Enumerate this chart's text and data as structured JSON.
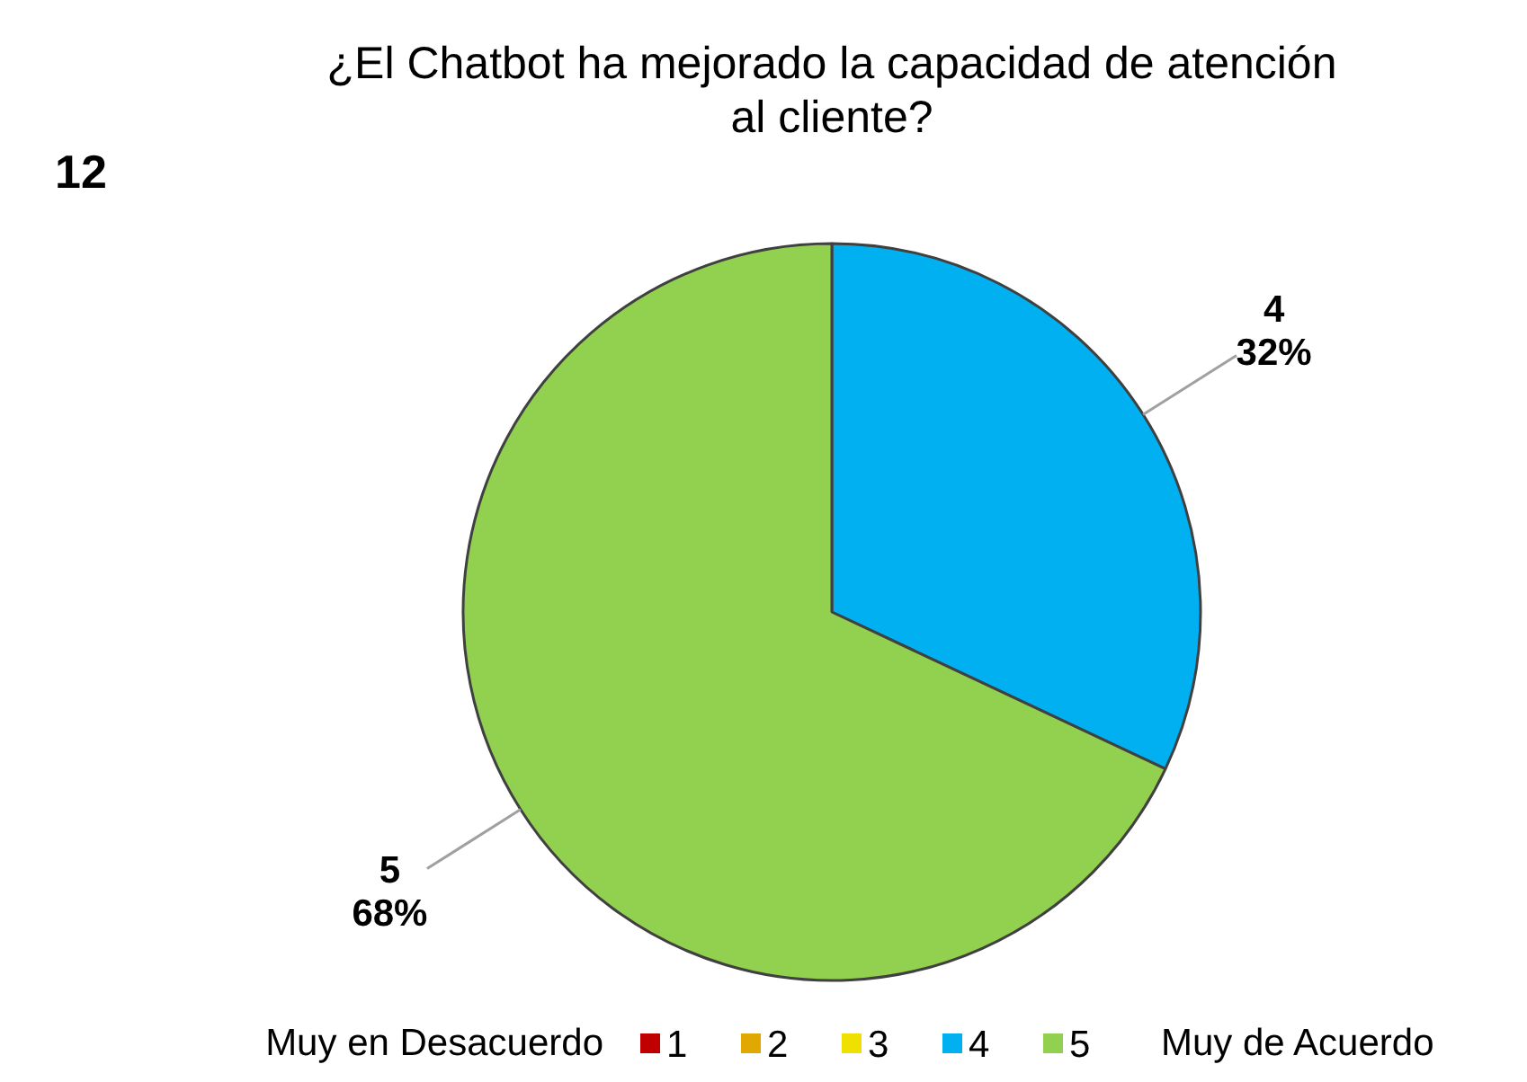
{
  "chart_data": {
    "type": "pie",
    "title": "¿El Chatbot ha mejorado la capacidad de atención al cliente?",
    "categories": [
      "1",
      "2",
      "3",
      "4",
      "5"
    ],
    "values": [
      0,
      0,
      0,
      32,
      68
    ],
    "colors": [
      "#c00000",
      "#e0a800",
      "#f0e000",
      "#00b0f0",
      "#92d050"
    ],
    "value_labels": [
      null,
      null,
      null,
      "32%",
      "68%"
    ],
    "annotations": [
      "12",
      "Muy en Desacuerdo",
      "Muy de Acuerdo"
    ],
    "legend": "bottom"
  }
}
